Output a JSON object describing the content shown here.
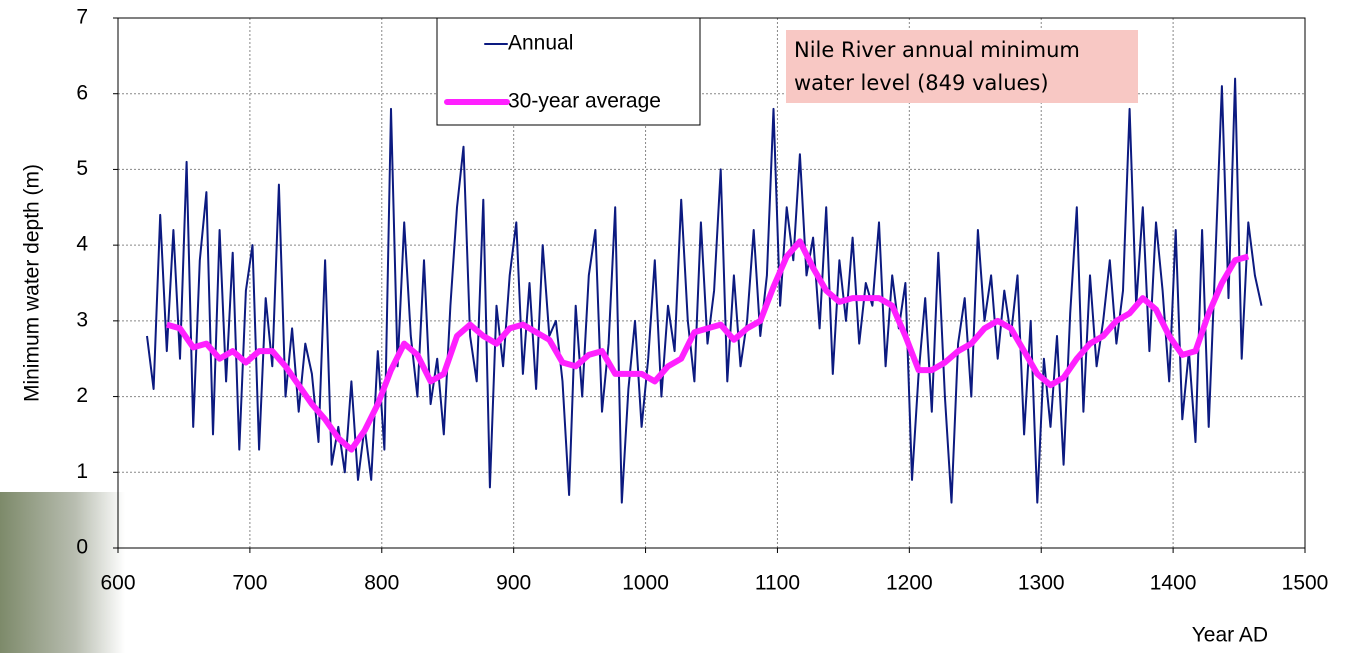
{
  "chart_data": {
    "type": "line",
    "annotation": "Nile River annual minimum water level (849 values)",
    "x_label": "Year AD",
    "y_label": "Minimum water depth (m)",
    "xlim": [
      600,
      1500
    ],
    "xticks": [
      600,
      700,
      800,
      900,
      1000,
      1100,
      1200,
      1300,
      1400,
      1500
    ],
    "ylim": [
      0,
      7
    ],
    "yticks": [
      0,
      1,
      2,
      3,
      4,
      5,
      6,
      7
    ],
    "grid": true,
    "series": [
      {
        "name": "Annual",
        "color": "#0c1a80",
        "width": 2,
        "x": [
          622,
          627,
          632,
          637,
          642,
          647,
          652,
          657,
          662,
          667,
          672,
          677,
          682,
          687,
          692,
          697,
          702,
          707,
          712,
          717,
          722,
          727,
          732,
          737,
          742,
          747,
          752,
          757,
          762,
          767,
          772,
          777,
          782,
          787,
          792,
          797,
          802,
          807,
          812,
          817,
          822,
          827,
          832,
          837,
          842,
          847,
          852,
          857,
          862,
          867,
          872,
          877,
          882,
          887,
          892,
          897,
          902,
          907,
          912,
          917,
          922,
          927,
          932,
          937,
          942,
          947,
          952,
          957,
          962,
          967,
          972,
          977,
          982,
          987,
          992,
          997,
          1002,
          1007,
          1012,
          1017,
          1022,
          1027,
          1032,
          1037,
          1042,
          1047,
          1052,
          1057,
          1062,
          1067,
          1072,
          1077,
          1082,
          1087,
          1092,
          1097,
          1102,
          1107,
          1112,
          1117,
          1122,
          1127,
          1132,
          1137,
          1142,
          1147,
          1152,
          1157,
          1162,
          1167,
          1172,
          1177,
          1182,
          1187,
          1192,
          1197,
          1202,
          1207,
          1212,
          1217,
          1222,
          1227,
          1232,
          1237,
          1242,
          1247,
          1252,
          1257,
          1262,
          1267,
          1272,
          1277,
          1282,
          1287,
          1292,
          1297,
          1302,
          1307,
          1312,
          1317,
          1322,
          1327,
          1332,
          1337,
          1342,
          1347,
          1352,
          1357,
          1362,
          1367,
          1372,
          1377,
          1382,
          1387,
          1392,
          1397,
          1402,
          1407,
          1412,
          1417,
          1422,
          1427,
          1432,
          1437,
          1442,
          1447,
          1452,
          1457,
          1462,
          1467
        ],
        "values": [
          2.8,
          2.1,
          4.4,
          2.6,
          4.2,
          2.5,
          5.1,
          1.6,
          3.8,
          4.7,
          1.5,
          4.2,
          2.2,
          3.9,
          1.3,
          3.4,
          4.0,
          1.3,
          3.3,
          2.4,
          4.8,
          2.0,
          2.9,
          1.8,
          2.7,
          2.3,
          1.4,
          3.8,
          1.1,
          1.6,
          1.0,
          2.2,
          0.9,
          1.6,
          0.9,
          2.6,
          1.3,
          5.8,
          2.4,
          4.3,
          2.8,
          2.0,
          3.8,
          1.9,
          2.5,
          1.5,
          3.2,
          4.5,
          5.3,
          2.8,
          2.2,
          4.6,
          0.8,
          3.2,
          2.4,
          3.6,
          4.3,
          2.3,
          3.5,
          2.1,
          4.0,
          2.8,
          3.0,
          2.2,
          0.7,
          3.2,
          2.0,
          3.6,
          4.2,
          1.8,
          2.7,
          4.5,
          0.6,
          2.1,
          3.0,
          1.6,
          2.5,
          3.8,
          2.0,
          3.2,
          2.6,
          4.6,
          3.0,
          2.2,
          4.3,
          2.7,
          3.4,
          5.0,
          2.2,
          3.6,
          2.4,
          3.0,
          4.2,
          2.8,
          3.6,
          5.8,
          3.2,
          4.5,
          3.8,
          5.2,
          3.6,
          4.1,
          2.9,
          4.5,
          2.3,
          3.8,
          3.0,
          4.1,
          2.7,
          3.5,
          3.2,
          4.3,
          2.4,
          3.6,
          2.9,
          3.5,
          0.9,
          2.3,
          3.3,
          1.8,
          3.9,
          2.0,
          0.6,
          2.7,
          3.3,
          2.0,
          4.2,
          3.0,
          3.6,
          2.5,
          3.4,
          2.8,
          3.6,
          1.5,
          3.0,
          0.6,
          2.5,
          1.6,
          2.8,
          1.1,
          3.1,
          4.5,
          1.8,
          3.6,
          2.4,
          3.0,
          3.8,
          2.7,
          3.4,
          5.8,
          3.2,
          4.5,
          2.6,
          4.3,
          3.4,
          2.2,
          4.2,
          1.7,
          2.6,
          1.4,
          4.2,
          1.6,
          3.8,
          6.1,
          3.3,
          6.2,
          2.5,
          4.3,
          3.6,
          3.2
        ]
      },
      {
        "name": "30-year average",
        "color": "#ff20ff",
        "width": 6,
        "x": [
          637,
          647,
          657,
          667,
          677,
          687,
          697,
          707,
          717,
          727,
          737,
          747,
          757,
          767,
          777,
          787,
          797,
          807,
          817,
          827,
          837,
          847,
          857,
          867,
          877,
          887,
          897,
          907,
          917,
          927,
          937,
          947,
          957,
          967,
          977,
          987,
          997,
          1007,
          1017,
          1027,
          1037,
          1047,
          1057,
          1067,
          1077,
          1087,
          1097,
          1107,
          1117,
          1127,
          1137,
          1147,
          1157,
          1167,
          1177,
          1187,
          1197,
          1207,
          1217,
          1227,
          1237,
          1247,
          1257,
          1267,
          1277,
          1287,
          1297,
          1307,
          1317,
          1327,
          1337,
          1347,
          1357,
          1367,
          1377,
          1387,
          1397,
          1407,
          1417,
          1427,
          1437,
          1447,
          1457
        ],
        "values": [
          2.95,
          2.9,
          2.65,
          2.7,
          2.5,
          2.6,
          2.45,
          2.6,
          2.6,
          2.4,
          2.15,
          1.9,
          1.7,
          1.45,
          1.3,
          1.55,
          1.9,
          2.35,
          2.7,
          2.55,
          2.2,
          2.3,
          2.8,
          2.95,
          2.8,
          2.7,
          2.9,
          2.95,
          2.85,
          2.75,
          2.45,
          2.4,
          2.55,
          2.6,
          2.3,
          2.3,
          2.3,
          2.2,
          2.4,
          2.5,
          2.85,
          2.9,
          2.95,
          2.75,
          2.9,
          3.0,
          3.45,
          3.85,
          4.05,
          3.7,
          3.4,
          3.25,
          3.3,
          3.3,
          3.3,
          3.2,
          2.8,
          2.35,
          2.35,
          2.45,
          2.6,
          2.7,
          2.9,
          3.0,
          2.9,
          2.6,
          2.3,
          2.15,
          2.25,
          2.5,
          2.7,
          2.8,
          3.0,
          3.1,
          3.3,
          3.15,
          2.8,
          2.55,
          2.6,
          3.1,
          3.5,
          3.8,
          3.85
        ]
      }
    ]
  }
}
